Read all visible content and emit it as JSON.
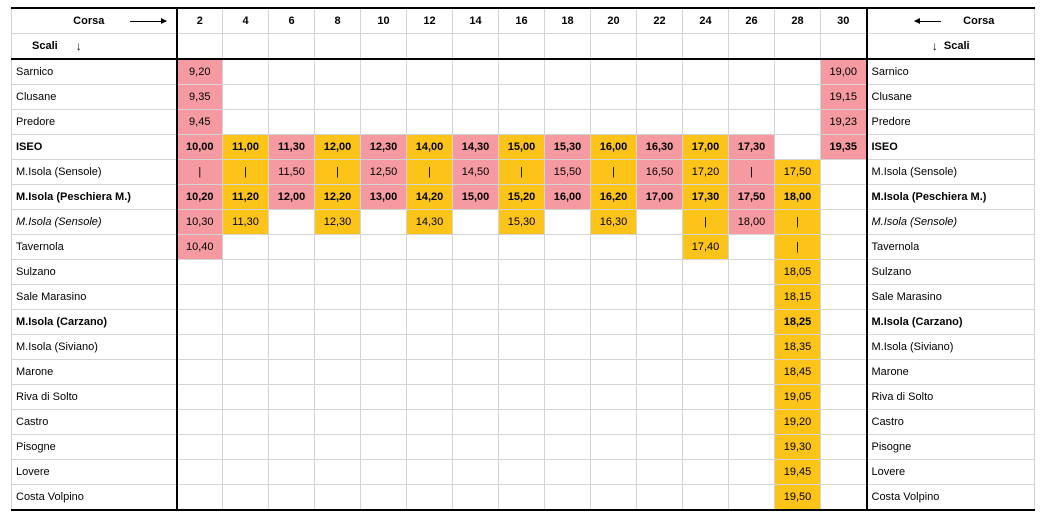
{
  "header": {
    "corsa_label": "Corsa",
    "scali_label": "Scali",
    "arrow_down": "↓",
    "runs": [
      "2",
      "4",
      "6",
      "8",
      "10",
      "12",
      "14",
      "16",
      "18",
      "20",
      "22",
      "24",
      "26",
      "28",
      "30"
    ]
  },
  "colors": {
    "pink": "#f59aa0",
    "gold": "#fcc419"
  },
  "stops": [
    {
      "name": "Sarnico",
      "style": "",
      "times": [
        "9,20",
        "",
        "",
        "",
        "",
        "",
        "",
        "",
        "",
        "",
        "",
        "",
        "",
        "",
        "19,00"
      ],
      "fills": [
        "p",
        "",
        "",
        "",
        "",
        "",
        "",
        "",
        "",
        "",
        "",
        "",
        "",
        "",
        "p"
      ]
    },
    {
      "name": "Clusane",
      "style": "",
      "times": [
        "9,35",
        "",
        "",
        "",
        "",
        "",
        "",
        "",
        "",
        "",
        "",
        "",
        "",
        "",
        "19,15"
      ],
      "fills": [
        "p",
        "",
        "",
        "",
        "",
        "",
        "",
        "",
        "",
        "",
        "",
        "",
        "",
        "",
        "p"
      ]
    },
    {
      "name": "Predore",
      "style": "",
      "times": [
        "9,45",
        "",
        "",
        "",
        "",
        "",
        "",
        "",
        "",
        "",
        "",
        "",
        "",
        "",
        "19,23"
      ],
      "fills": [
        "p",
        "",
        "",
        "",
        "",
        "",
        "",
        "",
        "",
        "",
        "",
        "",
        "",
        "",
        "p"
      ]
    },
    {
      "name": "ISEO",
      "style": "bold",
      "times": [
        "10,00",
        "11,00",
        "11,30",
        "12,00",
        "12,30",
        "14,00",
        "14,30",
        "15,00",
        "15,30",
        "16,00",
        "16,30",
        "17,00",
        "17,30",
        "",
        "19,35"
      ],
      "fills": [
        "p",
        "g",
        "p",
        "g",
        "p",
        "g",
        "p",
        "g",
        "p",
        "g",
        "p",
        "g",
        "p",
        "",
        "p"
      ]
    },
    {
      "name": "M.Isola (Sensole)",
      "style": "",
      "times": [
        "|",
        "|",
        "11,50",
        "|",
        "12,50",
        "|",
        "14,50",
        "|",
        "15,50",
        "|",
        "16,50",
        "17,20",
        "|",
        "17,50",
        ""
      ],
      "fills": [
        "p",
        "g",
        "p",
        "g",
        "p",
        "g",
        "p",
        "g",
        "p",
        "g",
        "p",
        "g",
        "p",
        "g",
        ""
      ]
    },
    {
      "name": "M.Isola (Peschiera M.)",
      "style": "bold",
      "times": [
        "10,20",
        "11,20",
        "12,00",
        "12,20",
        "13,00",
        "14,20",
        "15,00",
        "15,20",
        "16,00",
        "16,20",
        "17,00",
        "17,30",
        "17,50",
        "18,00",
        ""
      ],
      "fills": [
        "p",
        "g",
        "p",
        "g",
        "p",
        "g",
        "p",
        "g",
        "p",
        "g",
        "p",
        "g",
        "p",
        "g",
        ""
      ]
    },
    {
      "name": "M.Isola (Sensole)",
      "style": "ital",
      "times": [
        "10,30",
        "11,30",
        "",
        "12,30",
        "",
        "14,30",
        "",
        "15,30",
        "",
        "16,30",
        "",
        "|",
        "18,00",
        "|",
        ""
      ],
      "fills": [
        "p",
        "g",
        "",
        "g",
        "",
        "g",
        "",
        "g",
        "",
        "g",
        "",
        "g",
        "p",
        "g",
        ""
      ]
    },
    {
      "name": "Tavernola",
      "style": "",
      "times": [
        "10,40",
        "",
        "",
        "",
        "",
        "",
        "",
        "",
        "",
        "",
        "",
        "17,40",
        "",
        "|",
        ""
      ],
      "fills": [
        "p",
        "",
        "",
        "",
        "",
        "",
        "",
        "",
        "",
        "",
        "",
        "g",
        "",
        "g",
        ""
      ]
    },
    {
      "name": "Sulzano",
      "style": "",
      "times": [
        "",
        "",
        "",
        "",
        "",
        "",
        "",
        "",
        "",
        "",
        "",
        "",
        "",
        "18,05",
        ""
      ],
      "fills": [
        "",
        "",
        "",
        "",
        "",
        "",
        "",
        "",
        "",
        "",
        "",
        "",
        "",
        "g",
        ""
      ]
    },
    {
      "name": "Sale Marasino",
      "style": "",
      "times": [
        "",
        "",
        "",
        "",
        "",
        "",
        "",
        "",
        "",
        "",
        "",
        "",
        "",
        "18,15",
        ""
      ],
      "fills": [
        "",
        "",
        "",
        "",
        "",
        "",
        "",
        "",
        "",
        "",
        "",
        "",
        "",
        "g",
        ""
      ]
    },
    {
      "name": "M.Isola (Carzano)",
      "style": "bold",
      "times": [
        "",
        "",
        "",
        "",
        "",
        "",
        "",
        "",
        "",
        "",
        "",
        "",
        "",
        "18,25",
        ""
      ],
      "fills": [
        "",
        "",
        "",
        "",
        "",
        "",
        "",
        "",
        "",
        "",
        "",
        "",
        "",
        "g",
        ""
      ]
    },
    {
      "name": "M.Isola (Siviano)",
      "style": "",
      "times": [
        "",
        "",
        "",
        "",
        "",
        "",
        "",
        "",
        "",
        "",
        "",
        "",
        "",
        "18,35",
        ""
      ],
      "fills": [
        "",
        "",
        "",
        "",
        "",
        "",
        "",
        "",
        "",
        "",
        "",
        "",
        "",
        "g",
        ""
      ]
    },
    {
      "name": "Marone",
      "style": "",
      "times": [
        "",
        "",
        "",
        "",
        "",
        "",
        "",
        "",
        "",
        "",
        "",
        "",
        "",
        "18,45",
        ""
      ],
      "fills": [
        "",
        "",
        "",
        "",
        "",
        "",
        "",
        "",
        "",
        "",
        "",
        "",
        "",
        "g",
        ""
      ]
    },
    {
      "name": "Riva di Solto",
      "style": "",
      "times": [
        "",
        "",
        "",
        "",
        "",
        "",
        "",
        "",
        "",
        "",
        "",
        "",
        "",
        "19,05",
        ""
      ],
      "fills": [
        "",
        "",
        "",
        "",
        "",
        "",
        "",
        "",
        "",
        "",
        "",
        "",
        "",
        "g",
        ""
      ]
    },
    {
      "name": "Castro",
      "style": "",
      "times": [
        "",
        "",
        "",
        "",
        "",
        "",
        "",
        "",
        "",
        "",
        "",
        "",
        "",
        "19,20",
        ""
      ],
      "fills": [
        "",
        "",
        "",
        "",
        "",
        "",
        "",
        "",
        "",
        "",
        "",
        "",
        "",
        "g",
        ""
      ]
    },
    {
      "name": "Pisogne",
      "style": "",
      "times": [
        "",
        "",
        "",
        "",
        "",
        "",
        "",
        "",
        "",
        "",
        "",
        "",
        "",
        "19,30",
        ""
      ],
      "fills": [
        "",
        "",
        "",
        "",
        "",
        "",
        "",
        "",
        "",
        "",
        "",
        "",
        "",
        "g",
        ""
      ]
    },
    {
      "name": "Lovere",
      "style": "",
      "times": [
        "",
        "",
        "",
        "",
        "",
        "",
        "",
        "",
        "",
        "",
        "",
        "",
        "",
        "19,45",
        ""
      ],
      "fills": [
        "",
        "",
        "",
        "",
        "",
        "",
        "",
        "",
        "",
        "",
        "",
        "",
        "",
        "g",
        ""
      ]
    },
    {
      "name": "Costa Volpino",
      "style": "",
      "times": [
        "",
        "",
        "",
        "",
        "",
        "",
        "",
        "",
        "",
        "",
        "",
        "",
        "",
        "19,50",
        ""
      ],
      "fills": [
        "",
        "",
        "",
        "",
        "",
        "",
        "",
        "",
        "",
        "",
        "",
        "",
        "",
        "g",
        ""
      ]
    }
  ]
}
